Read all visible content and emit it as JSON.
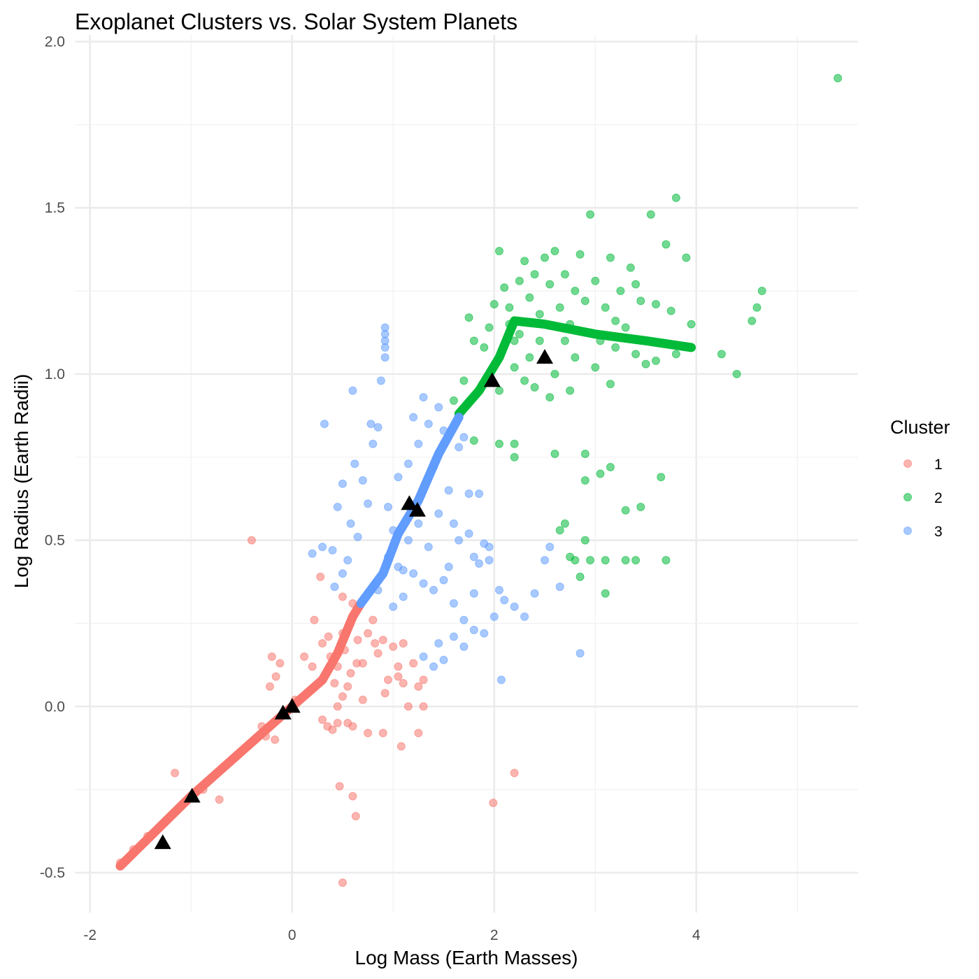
{
  "chart_data": {
    "type": "scatter",
    "title": "Exoplanet Clusters vs. Solar System Planets",
    "xlabel": "Log Mass (Earth Masses)",
    "ylabel": "Log Radius (Earth Radii)",
    "xlim": [
      -2.15,
      5.6
    ],
    "ylim": [
      -0.62,
      2.02
    ],
    "x_ticks": [
      -2,
      0,
      2,
      4
    ],
    "y_ticks": [
      -0.5,
      0.0,
      0.5,
      1.0,
      1.5,
      2.0
    ],
    "x_tick_labels": [
      "-2",
      "0",
      "2",
      "4"
    ],
    "y_tick_labels": [
      "-0.5",
      "0.0",
      "0.5",
      "1.0",
      "1.5",
      "2.0"
    ],
    "grid": true,
    "legend": {
      "title": "Cluster",
      "position": "right",
      "entries": [
        {
          "label": "1",
          "color": "#F8766D"
        },
        {
          "label": "2",
          "color": "#00BA38"
        },
        {
          "label": "3",
          "color": "#619CFF"
        }
      ]
    },
    "series": [
      {
        "name": "1",
        "color": "#F8766D",
        "trend": [
          [
            -1.7,
            -0.48
          ],
          [
            -1.0,
            -0.27
          ],
          [
            0.0,
            0.0
          ],
          [
            0.3,
            0.08
          ],
          [
            0.45,
            0.16
          ],
          [
            0.6,
            0.27
          ],
          [
            0.68,
            0.31
          ]
        ],
        "points": [
          [
            -1.7,
            -0.47
          ],
          [
            -1.57,
            -0.43
          ],
          [
            -1.43,
            -0.39
          ],
          [
            -1.16,
            -0.2
          ],
          [
            -1.1,
            -0.3
          ],
          [
            -0.88,
            -0.25
          ],
          [
            -0.72,
            -0.28
          ],
          [
            -0.4,
            0.5
          ],
          [
            -0.26,
            -0.09
          ],
          [
            -0.2,
            0.15
          ],
          [
            -0.16,
            0.09
          ],
          [
            -0.12,
            0.13
          ],
          [
            -0.22,
            0.06
          ],
          [
            -0.3,
            -0.06
          ],
          [
            -0.17,
            -0.1
          ],
          [
            0.03,
            0.02
          ],
          [
            0.12,
            0.15
          ],
          [
            0.2,
            0.12
          ],
          [
            0.22,
            0.26
          ],
          [
            0.3,
            0.19
          ],
          [
            0.36,
            0.21
          ],
          [
            0.42,
            0.07
          ],
          [
            0.45,
            0.12
          ],
          [
            0.5,
            0.33
          ],
          [
            0.5,
            0.22
          ],
          [
            0.52,
            0.17
          ],
          [
            0.58,
            0.1
          ],
          [
            0.6,
            0.31
          ],
          [
            0.65,
            0.2
          ],
          [
            0.7,
            0.13
          ],
          [
            0.75,
            0.22
          ],
          [
            0.8,
            0.26
          ],
          [
            0.85,
            0.16
          ],
          [
            0.9,
            0.2
          ],
          [
            0.95,
            0.08
          ],
          [
            1.05,
            0.12
          ],
          [
            1.1,
            0.07
          ],
          [
            1.2,
            0.13
          ],
          [
            1.25,
            0.06
          ],
          [
            1.3,
            0.08
          ],
          [
            0.3,
            -0.04
          ],
          [
            0.35,
            -0.06
          ],
          [
            0.4,
            -0.07
          ],
          [
            0.45,
            -0.05
          ],
          [
            0.55,
            -0.05
          ],
          [
            0.6,
            -0.06
          ],
          [
            0.75,
            -0.08
          ],
          [
            0.9,
            -0.08
          ],
          [
            1.08,
            -0.12
          ],
          [
            1.15,
            0.0
          ],
          [
            1.25,
            -0.08
          ],
          [
            1.3,
            0.0
          ],
          [
            0.28,
            0.39
          ],
          [
            0.47,
            -0.24
          ],
          [
            0.6,
            -0.27
          ],
          [
            0.63,
            -0.33
          ],
          [
            0.5,
            -0.53
          ],
          [
            1.99,
            -0.29
          ],
          [
            2.2,
            -0.2
          ],
          [
            0.45,
            0.0
          ],
          [
            0.5,
            0.03
          ],
          [
            0.38,
            0.15
          ],
          [
            0.7,
            0.02
          ],
          [
            0.92,
            0.04
          ],
          [
            1.0,
            0.18
          ],
          [
            1.1,
            0.19
          ],
          [
            0.82,
            0.19
          ],
          [
            0.64,
            0.13
          ],
          [
            0.55,
            0.06
          ],
          [
            1.05,
            0.09
          ]
        ]
      },
      {
        "name": "2",
        "color": "#00BA38",
        "trend": [
          [
            1.65,
            0.88
          ],
          [
            1.85,
            0.95
          ],
          [
            2.05,
            1.05
          ],
          [
            2.2,
            1.16
          ],
          [
            2.5,
            1.15
          ],
          [
            3.0,
            1.12
          ],
          [
            3.5,
            1.1
          ],
          [
            3.95,
            1.08
          ]
        ],
        "points": [
          [
            1.6,
            0.92
          ],
          [
            1.7,
            0.98
          ],
          [
            1.75,
            1.17
          ],
          [
            1.8,
            1.1
          ],
          [
            1.85,
            0.95
          ],
          [
            1.9,
            1.08
          ],
          [
            1.95,
            1.14
          ],
          [
            2.0,
            1.21
          ],
          [
            2.05,
            1.37
          ],
          [
            2.05,
            0.95
          ],
          [
            2.1,
            1.26
          ],
          [
            2.15,
            1.2
          ],
          [
            2.2,
            1.1
          ],
          [
            2.25,
            1.28
          ],
          [
            2.3,
            1.34
          ],
          [
            2.35,
            1.23
          ],
          [
            2.4,
            1.3
          ],
          [
            2.45,
            1.18
          ],
          [
            2.5,
            1.35
          ],
          [
            2.55,
            1.27
          ],
          [
            2.6,
            1.37
          ],
          [
            2.65,
            1.2
          ],
          [
            2.7,
            1.3
          ],
          [
            2.75,
            1.15
          ],
          [
            2.8,
            1.25
          ],
          [
            2.85,
            1.36
          ],
          [
            2.9,
            1.22
          ],
          [
            2.95,
            1.48
          ],
          [
            3.0,
            1.28
          ],
          [
            3.05,
            1.1
          ],
          [
            3.1,
            1.2
          ],
          [
            3.15,
            1.35
          ],
          [
            3.2,
            1.16
          ],
          [
            3.25,
            1.25
          ],
          [
            3.3,
            1.14
          ],
          [
            3.35,
            1.32
          ],
          [
            3.4,
            1.27
          ],
          [
            3.45,
            1.22
          ],
          [
            3.55,
            1.48
          ],
          [
            3.6,
            1.21
          ],
          [
            3.7,
            1.39
          ],
          [
            3.75,
            1.19
          ],
          [
            3.8,
            1.53
          ],
          [
            3.9,
            1.35
          ],
          [
            3.95,
            1.15
          ],
          [
            4.25,
            1.06
          ],
          [
            4.4,
            1.0
          ],
          [
            4.55,
            1.16
          ],
          [
            4.6,
            1.2
          ],
          [
            4.65,
            1.25
          ],
          [
            5.4,
            1.89
          ],
          [
            2.05,
            0.79
          ],
          [
            2.2,
            0.79
          ],
          [
            2.2,
            0.75
          ],
          [
            2.6,
            0.76
          ],
          [
            2.7,
            0.55
          ],
          [
            2.65,
            0.53
          ],
          [
            2.75,
            0.45
          ],
          [
            2.85,
            0.39
          ],
          [
            2.9,
            0.5
          ],
          [
            2.9,
            0.76
          ],
          [
            2.9,
            0.68
          ],
          [
            3.05,
            0.7
          ],
          [
            3.15,
            0.72
          ],
          [
            3.3,
            0.59
          ],
          [
            3.45,
            0.6
          ],
          [
            3.65,
            0.69
          ],
          [
            3.1,
            0.34
          ],
          [
            2.8,
            0.44
          ],
          [
            2.95,
            0.44
          ],
          [
            3.1,
            0.44
          ],
          [
            3.3,
            0.44
          ],
          [
            3.4,
            0.44
          ],
          [
            3.7,
            0.44
          ],
          [
            1.8,
            0.8
          ],
          [
            2.2,
            1.02
          ],
          [
            2.3,
            0.98
          ],
          [
            2.4,
            0.96
          ],
          [
            2.5,
            1.05
          ],
          [
            2.6,
            1.0
          ],
          [
            2.7,
            1.1
          ],
          [
            2.8,
            1.05
          ],
          [
            3.0,
            1.02
          ],
          [
            3.2,
            1.08
          ],
          [
            3.5,
            1.03
          ],
          [
            3.8,
            1.06
          ],
          [
            2.55,
            0.93
          ],
          [
            2.75,
            0.95
          ],
          [
            2.45,
            1.1
          ],
          [
            2.35,
            1.05
          ],
          [
            2.15,
            1.15
          ],
          [
            2.25,
            1.12
          ],
          [
            3.15,
            0.97
          ],
          [
            3.4,
            1.06
          ],
          [
            3.6,
            1.04
          ]
        ]
      },
      {
        "name": "3",
        "color": "#619CFF",
        "trend": [
          [
            0.68,
            0.31
          ],
          [
            0.9,
            0.4
          ],
          [
            1.05,
            0.52
          ],
          [
            1.25,
            0.62
          ],
          [
            1.45,
            0.76
          ],
          [
            1.65,
            0.87
          ]
        ],
        "points": [
          [
            0.32,
            0.85
          ],
          [
            0.4,
            0.47
          ],
          [
            0.45,
            0.6
          ],
          [
            0.5,
            0.67
          ],
          [
            0.55,
            0.44
          ],
          [
            0.58,
            0.55
          ],
          [
            0.62,
            0.73
          ],
          [
            0.65,
            0.51
          ],
          [
            0.7,
            0.68
          ],
          [
            0.75,
            0.61
          ],
          [
            0.78,
            0.85
          ],
          [
            0.8,
            0.79
          ],
          [
            0.85,
            0.84
          ],
          [
            0.88,
            0.98
          ],
          [
            0.92,
            1.05
          ],
          [
            0.92,
            1.08
          ],
          [
            0.92,
            1.1
          ],
          [
            0.92,
            1.12
          ],
          [
            0.92,
            1.14
          ],
          [
            0.95,
            0.6
          ],
          [
            1.0,
            0.53
          ],
          [
            1.05,
            0.69
          ],
          [
            1.1,
            0.41
          ],
          [
            1.15,
            0.73
          ],
          [
            1.2,
            0.87
          ],
          [
            1.25,
            0.79
          ],
          [
            1.3,
            0.93
          ],
          [
            1.35,
            0.85
          ],
          [
            1.4,
            0.72
          ],
          [
            1.45,
            0.9
          ],
          [
            1.5,
            0.83
          ],
          [
            1.55,
            0.65
          ],
          [
            1.6,
            0.55
          ],
          [
            1.65,
            0.78
          ],
          [
            1.7,
            0.81
          ],
          [
            1.75,
            0.64
          ],
          [
            1.8,
            0.45
          ],
          [
            1.85,
            0.64
          ],
          [
            1.9,
            0.49
          ],
          [
            1.95,
            0.44
          ],
          [
            2.0,
            0.27
          ],
          [
            2.05,
            0.35
          ],
          [
            2.1,
            0.32
          ],
          [
            2.2,
            0.3
          ],
          [
            2.3,
            0.27
          ],
          [
            2.4,
            0.34
          ],
          [
            2.5,
            0.44
          ],
          [
            2.55,
            0.48
          ],
          [
            2.65,
            0.36
          ],
          [
            2.85,
            0.16
          ],
          [
            2.07,
            0.08
          ],
          [
            1.5,
            0.14
          ],
          [
            1.4,
            0.12
          ],
          [
            1.3,
            0.15
          ],
          [
            1.45,
            0.19
          ],
          [
            1.6,
            0.21
          ],
          [
            1.7,
            0.18
          ],
          [
            1.8,
            0.23
          ],
          [
            1.9,
            0.22
          ],
          [
            0.2,
            0.46
          ],
          [
            0.3,
            0.48
          ],
          [
            0.42,
            0.36
          ],
          [
            0.6,
            0.95
          ],
          [
            0.5,
            0.4
          ],
          [
            1.0,
            0.3
          ],
          [
            1.1,
            0.33
          ],
          [
            1.2,
            0.4
          ],
          [
            1.3,
            0.37
          ],
          [
            1.4,
            0.35
          ],
          [
            1.5,
            0.38
          ],
          [
            1.6,
            0.31
          ],
          [
            1.7,
            0.26
          ],
          [
            1.8,
            0.34
          ],
          [
            0.85,
            0.35
          ],
          [
            0.95,
            0.45
          ],
          [
            1.05,
            0.42
          ],
          [
            1.15,
            0.5
          ],
          [
            1.25,
            0.55
          ],
          [
            1.35,
            0.48
          ],
          [
            1.45,
            0.58
          ],
          [
            1.55,
            0.42
          ],
          [
            1.65,
            0.5
          ],
          [
            1.75,
            0.52
          ],
          [
            1.85,
            0.43
          ],
          [
            1.95,
            0.48
          ]
        ]
      }
    ],
    "solar_system_planets": [
      [
        -1.28,
        -0.41
      ],
      [
        -0.99,
        -0.27
      ],
      [
        -0.09,
        -0.02
      ],
      [
        0.0,
        0.0
      ],
      [
        1.16,
        0.61
      ],
      [
        1.24,
        0.59
      ],
      [
        1.98,
        0.98
      ],
      [
        2.5,
        1.05
      ]
    ],
    "solar_marker": {
      "shape": "triangle",
      "color": "#000000"
    }
  }
}
